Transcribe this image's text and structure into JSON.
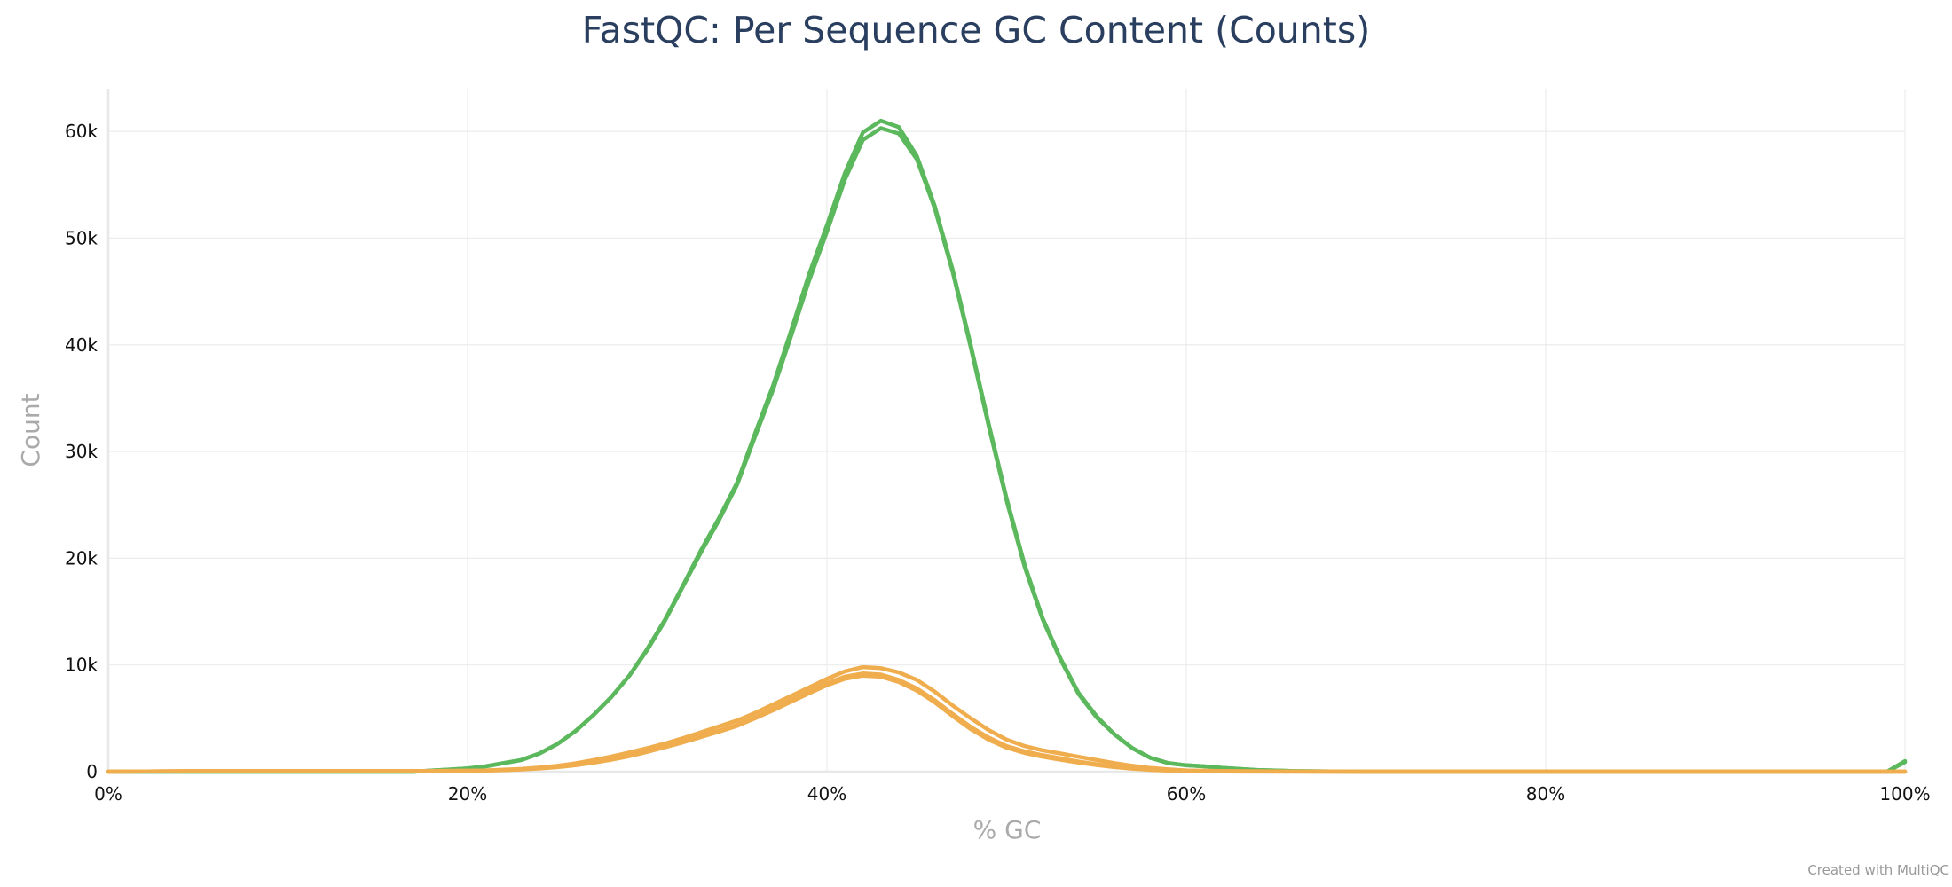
{
  "chart_data": {
    "type": "line",
    "title": "FastQC: Per Sequence GC Content (Counts)",
    "xlabel": "% GC",
    "ylabel": "Count",
    "xlim": [
      0,
      100
    ],
    "ylim": [
      0,
      64000
    ],
    "x_ticks": [
      {
        "value": 0,
        "label": "0%"
      },
      {
        "value": 20,
        "label": "20%"
      },
      {
        "value": 40,
        "label": "40%"
      },
      {
        "value": 60,
        "label": "60%"
      },
      {
        "value": 80,
        "label": "80%"
      },
      {
        "value": 100,
        "label": "100%"
      }
    ],
    "y_ticks": [
      {
        "value": 0,
        "label": "0"
      },
      {
        "value": 10000,
        "label": "10k"
      },
      {
        "value": 20000,
        "label": "20k"
      },
      {
        "value": 30000,
        "label": "30k"
      },
      {
        "value": 40000,
        "label": "40k"
      },
      {
        "value": 50000,
        "label": "50k"
      },
      {
        "value": 60000,
        "label": "60k"
      }
    ],
    "grid": true,
    "legend": "none",
    "series": [
      {
        "color": "#5cb85c",
        "points": [
          [
            0,
            0
          ],
          [
            10,
            0
          ],
          [
            17,
            0
          ],
          [
            18,
            100
          ],
          [
            19,
            200
          ],
          [
            20,
            300
          ],
          [
            21,
            500
          ],
          [
            22,
            800
          ],
          [
            23,
            1100
          ],
          [
            24,
            1700
          ],
          [
            25,
            2600
          ],
          [
            26,
            3800
          ],
          [
            27,
            5300
          ],
          [
            28,
            7000
          ],
          [
            29,
            9000
          ],
          [
            30,
            11400
          ],
          [
            31,
            14200
          ],
          [
            32,
            17400
          ],
          [
            33,
            20600
          ],
          [
            34,
            23600
          ],
          [
            35,
            26900
          ],
          [
            36,
            31400
          ],
          [
            37,
            35800
          ],
          [
            38,
            40800
          ],
          [
            39,
            46000
          ],
          [
            40,
            50600
          ],
          [
            41,
            55500
          ],
          [
            42,
            59200
          ],
          [
            43,
            60300
          ],
          [
            44,
            59800
          ],
          [
            45,
            57400
          ],
          [
            46,
            52800
          ],
          [
            47,
            46800
          ],
          [
            48,
            39800
          ],
          [
            49,
            32400
          ],
          [
            50,
            25400
          ],
          [
            51,
            19200
          ],
          [
            52,
            14300
          ],
          [
            53,
            10500
          ],
          [
            54,
            7300
          ],
          [
            55,
            5100
          ],
          [
            56,
            3500
          ],
          [
            57,
            2200
          ],
          [
            58,
            1300
          ],
          [
            59,
            800
          ],
          [
            60,
            600
          ],
          [
            61,
            500
          ],
          [
            62,
            350
          ],
          [
            63,
            250
          ],
          [
            64,
            150
          ],
          [
            65,
            100
          ],
          [
            66,
            50
          ],
          [
            68,
            20
          ],
          [
            70,
            0
          ],
          [
            99,
            0
          ],
          [
            100,
            900
          ]
        ]
      },
      {
        "color": "#5cb85c",
        "points": [
          [
            0,
            0
          ],
          [
            10,
            0
          ],
          [
            17,
            0
          ],
          [
            18,
            100
          ],
          [
            19,
            200
          ],
          [
            20,
            300
          ],
          [
            21,
            500
          ],
          [
            22,
            800
          ],
          [
            23,
            1100
          ],
          [
            24,
            1700
          ],
          [
            25,
            2600
          ],
          [
            26,
            3800
          ],
          [
            27,
            5300
          ],
          [
            28,
            7000
          ],
          [
            29,
            9000
          ],
          [
            30,
            11500
          ],
          [
            31,
            14300
          ],
          [
            32,
            17500
          ],
          [
            33,
            20800
          ],
          [
            34,
            23800
          ],
          [
            35,
            27100
          ],
          [
            36,
            31700
          ],
          [
            37,
            36200
          ],
          [
            38,
            41300
          ],
          [
            39,
            46600
          ],
          [
            40,
            51200
          ],
          [
            41,
            56100
          ],
          [
            42,
            59900
          ],
          [
            43,
            61000
          ],
          [
            44,
            60400
          ],
          [
            45,
            57700
          ],
          [
            46,
            53000
          ],
          [
            47,
            47000
          ],
          [
            48,
            40000
          ],
          [
            49,
            32600
          ],
          [
            50,
            25600
          ],
          [
            51,
            19400
          ],
          [
            52,
            14400
          ],
          [
            53,
            10600
          ],
          [
            54,
            7400
          ],
          [
            55,
            5200
          ],
          [
            56,
            3500
          ],
          [
            57,
            2200
          ],
          [
            58,
            1300
          ],
          [
            59,
            800
          ],
          [
            60,
            600
          ],
          [
            61,
            500
          ],
          [
            62,
            350
          ],
          [
            63,
            250
          ],
          [
            64,
            150
          ],
          [
            65,
            100
          ],
          [
            66,
            50
          ],
          [
            68,
            20
          ],
          [
            70,
            0
          ],
          [
            99,
            0
          ],
          [
            100,
            1000
          ]
        ]
      },
      {
        "color": "#f0ad4e",
        "points": [
          [
            0,
            0
          ],
          [
            5,
            50
          ],
          [
            10,
            50
          ],
          [
            15,
            50
          ],
          [
            18,
            60
          ],
          [
            20,
            80
          ],
          [
            21,
            120
          ],
          [
            22,
            180
          ],
          [
            23,
            260
          ],
          [
            24,
            380
          ],
          [
            25,
            550
          ],
          [
            26,
            780
          ],
          [
            27,
            1080
          ],
          [
            28,
            1420
          ],
          [
            29,
            1800
          ],
          [
            30,
            2200
          ],
          [
            31,
            2650
          ],
          [
            32,
            3150
          ],
          [
            33,
            3700
          ],
          [
            34,
            4250
          ],
          [
            35,
            4800
          ],
          [
            36,
            5500
          ],
          [
            37,
            6300
          ],
          [
            38,
            7100
          ],
          [
            39,
            7900
          ],
          [
            40,
            8700
          ],
          [
            41,
            9400
          ],
          [
            42,
            9800
          ],
          [
            43,
            9700
          ],
          [
            44,
            9300
          ],
          [
            45,
            8600
          ],
          [
            46,
            7500
          ],
          [
            47,
            6200
          ],
          [
            48,
            5000
          ],
          [
            49,
            3900
          ],
          [
            50,
            3000
          ],
          [
            51,
            2400
          ],
          [
            52,
            2000
          ],
          [
            53,
            1700
          ],
          [
            54,
            1400
          ],
          [
            55,
            1100
          ],
          [
            56,
            800
          ],
          [
            57,
            550
          ],
          [
            58,
            350
          ],
          [
            59,
            220
          ],
          [
            60,
            120
          ],
          [
            62,
            60
          ],
          [
            65,
            30
          ],
          [
            70,
            0
          ],
          [
            100,
            0
          ]
        ]
      },
      {
        "color": "#f0ad4e",
        "points": [
          [
            0,
            0
          ],
          [
            5,
            50
          ],
          [
            10,
            50
          ],
          [
            15,
            50
          ],
          [
            18,
            60
          ],
          [
            20,
            80
          ],
          [
            21,
            110
          ],
          [
            22,
            160
          ],
          [
            23,
            220
          ],
          [
            24,
            320
          ],
          [
            25,
            450
          ],
          [
            26,
            650
          ],
          [
            27,
            900
          ],
          [
            28,
            1200
          ],
          [
            29,
            1550
          ],
          [
            30,
            1950
          ],
          [
            31,
            2400
          ],
          [
            32,
            2850
          ],
          [
            33,
            3350
          ],
          [
            34,
            3850
          ],
          [
            35,
            4400
          ],
          [
            36,
            5100
          ],
          [
            37,
            5900
          ],
          [
            38,
            6700
          ],
          [
            39,
            7500
          ],
          [
            40,
            8300
          ],
          [
            41,
            8900
          ],
          [
            42,
            9200
          ],
          [
            43,
            9100
          ],
          [
            44,
            8600
          ],
          [
            45,
            7800
          ],
          [
            46,
            6700
          ],
          [
            47,
            5400
          ],
          [
            48,
            4200
          ],
          [
            49,
            3200
          ],
          [
            50,
            2400
          ],
          [
            51,
            1900
          ],
          [
            52,
            1550
          ],
          [
            53,
            1250
          ],
          [
            54,
            950
          ],
          [
            55,
            700
          ],
          [
            56,
            480
          ],
          [
            57,
            320
          ],
          [
            58,
            200
          ],
          [
            59,
            120
          ],
          [
            60,
            60
          ],
          [
            62,
            30
          ],
          [
            65,
            10
          ],
          [
            70,
            0
          ],
          [
            100,
            0
          ]
        ]
      },
      {
        "color": "#f0ad4e",
        "points": [
          [
            0,
            0
          ],
          [
            5,
            50
          ],
          [
            10,
            50
          ],
          [
            15,
            50
          ],
          [
            18,
            60
          ],
          [
            20,
            80
          ],
          [
            21,
            100
          ],
          [
            22,
            150
          ],
          [
            23,
            210
          ],
          [
            24,
            300
          ],
          [
            25,
            420
          ],
          [
            26,
            600
          ],
          [
            27,
            840
          ],
          [
            28,
            1120
          ],
          [
            29,
            1450
          ],
          [
            30,
            1850
          ],
          [
            31,
            2300
          ],
          [
            32,
            2750
          ],
          [
            33,
            3250
          ],
          [
            34,
            3750
          ],
          [
            35,
            4300
          ],
          [
            36,
            5000
          ],
          [
            37,
            5750
          ],
          [
            38,
            6550
          ],
          [
            39,
            7350
          ],
          [
            40,
            8100
          ],
          [
            41,
            8700
          ],
          [
            42,
            9000
          ],
          [
            43,
            8900
          ],
          [
            44,
            8400
          ],
          [
            45,
            7600
          ],
          [
            46,
            6500
          ],
          [
            47,
            5200
          ],
          [
            48,
            4000
          ],
          [
            49,
            3000
          ],
          [
            50,
            2250
          ],
          [
            51,
            1750
          ],
          [
            52,
            1400
          ],
          [
            53,
            1120
          ],
          [
            54,
            850
          ],
          [
            55,
            620
          ],
          [
            56,
            420
          ],
          [
            57,
            280
          ],
          [
            58,
            170
          ],
          [
            59,
            100
          ],
          [
            60,
            50
          ],
          [
            62,
            20
          ],
          [
            65,
            10
          ],
          [
            70,
            0
          ],
          [
            100,
            0
          ]
        ]
      }
    ]
  },
  "credit": "Created with MultiQC"
}
